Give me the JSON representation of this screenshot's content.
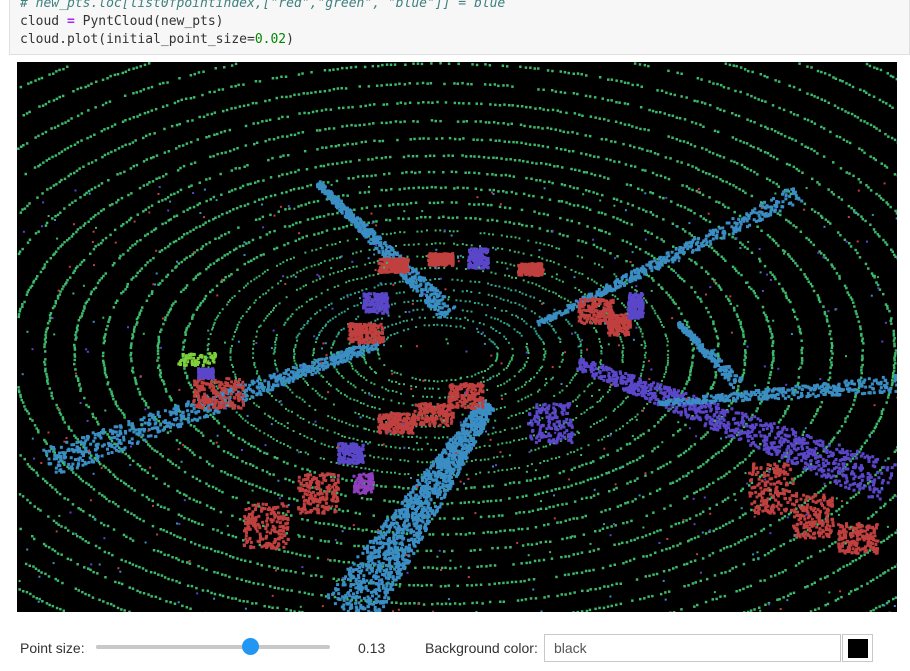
{
  "code_cell": {
    "comment_line": "# new_pts.loc[list0fpointindex,[\"red\",\"green\", \"blue\"]] = blue",
    "line2_var": "cloud",
    "line2_op": "=",
    "line2_rest": "PyntCloud(new_pts)",
    "line3_call": "cloud.plot(initial_point_size=",
    "line3_num": "0.02",
    "line3_close": ")"
  },
  "viewer": {
    "background": "#000000",
    "colors": {
      "ground": "#3cb96a",
      "road": "#3a8ec4",
      "vehicle": "#c0403f",
      "structure": "#5a46c8",
      "pole": "#8f3fbe",
      "vegetation": "#7ed03a"
    }
  },
  "controls": {
    "point_size_label": "Point size:",
    "point_size_value": "0.13",
    "slider_fraction": 0.66,
    "background_label": "Background color:",
    "background_value": "black",
    "swatch_color": "#000000"
  }
}
